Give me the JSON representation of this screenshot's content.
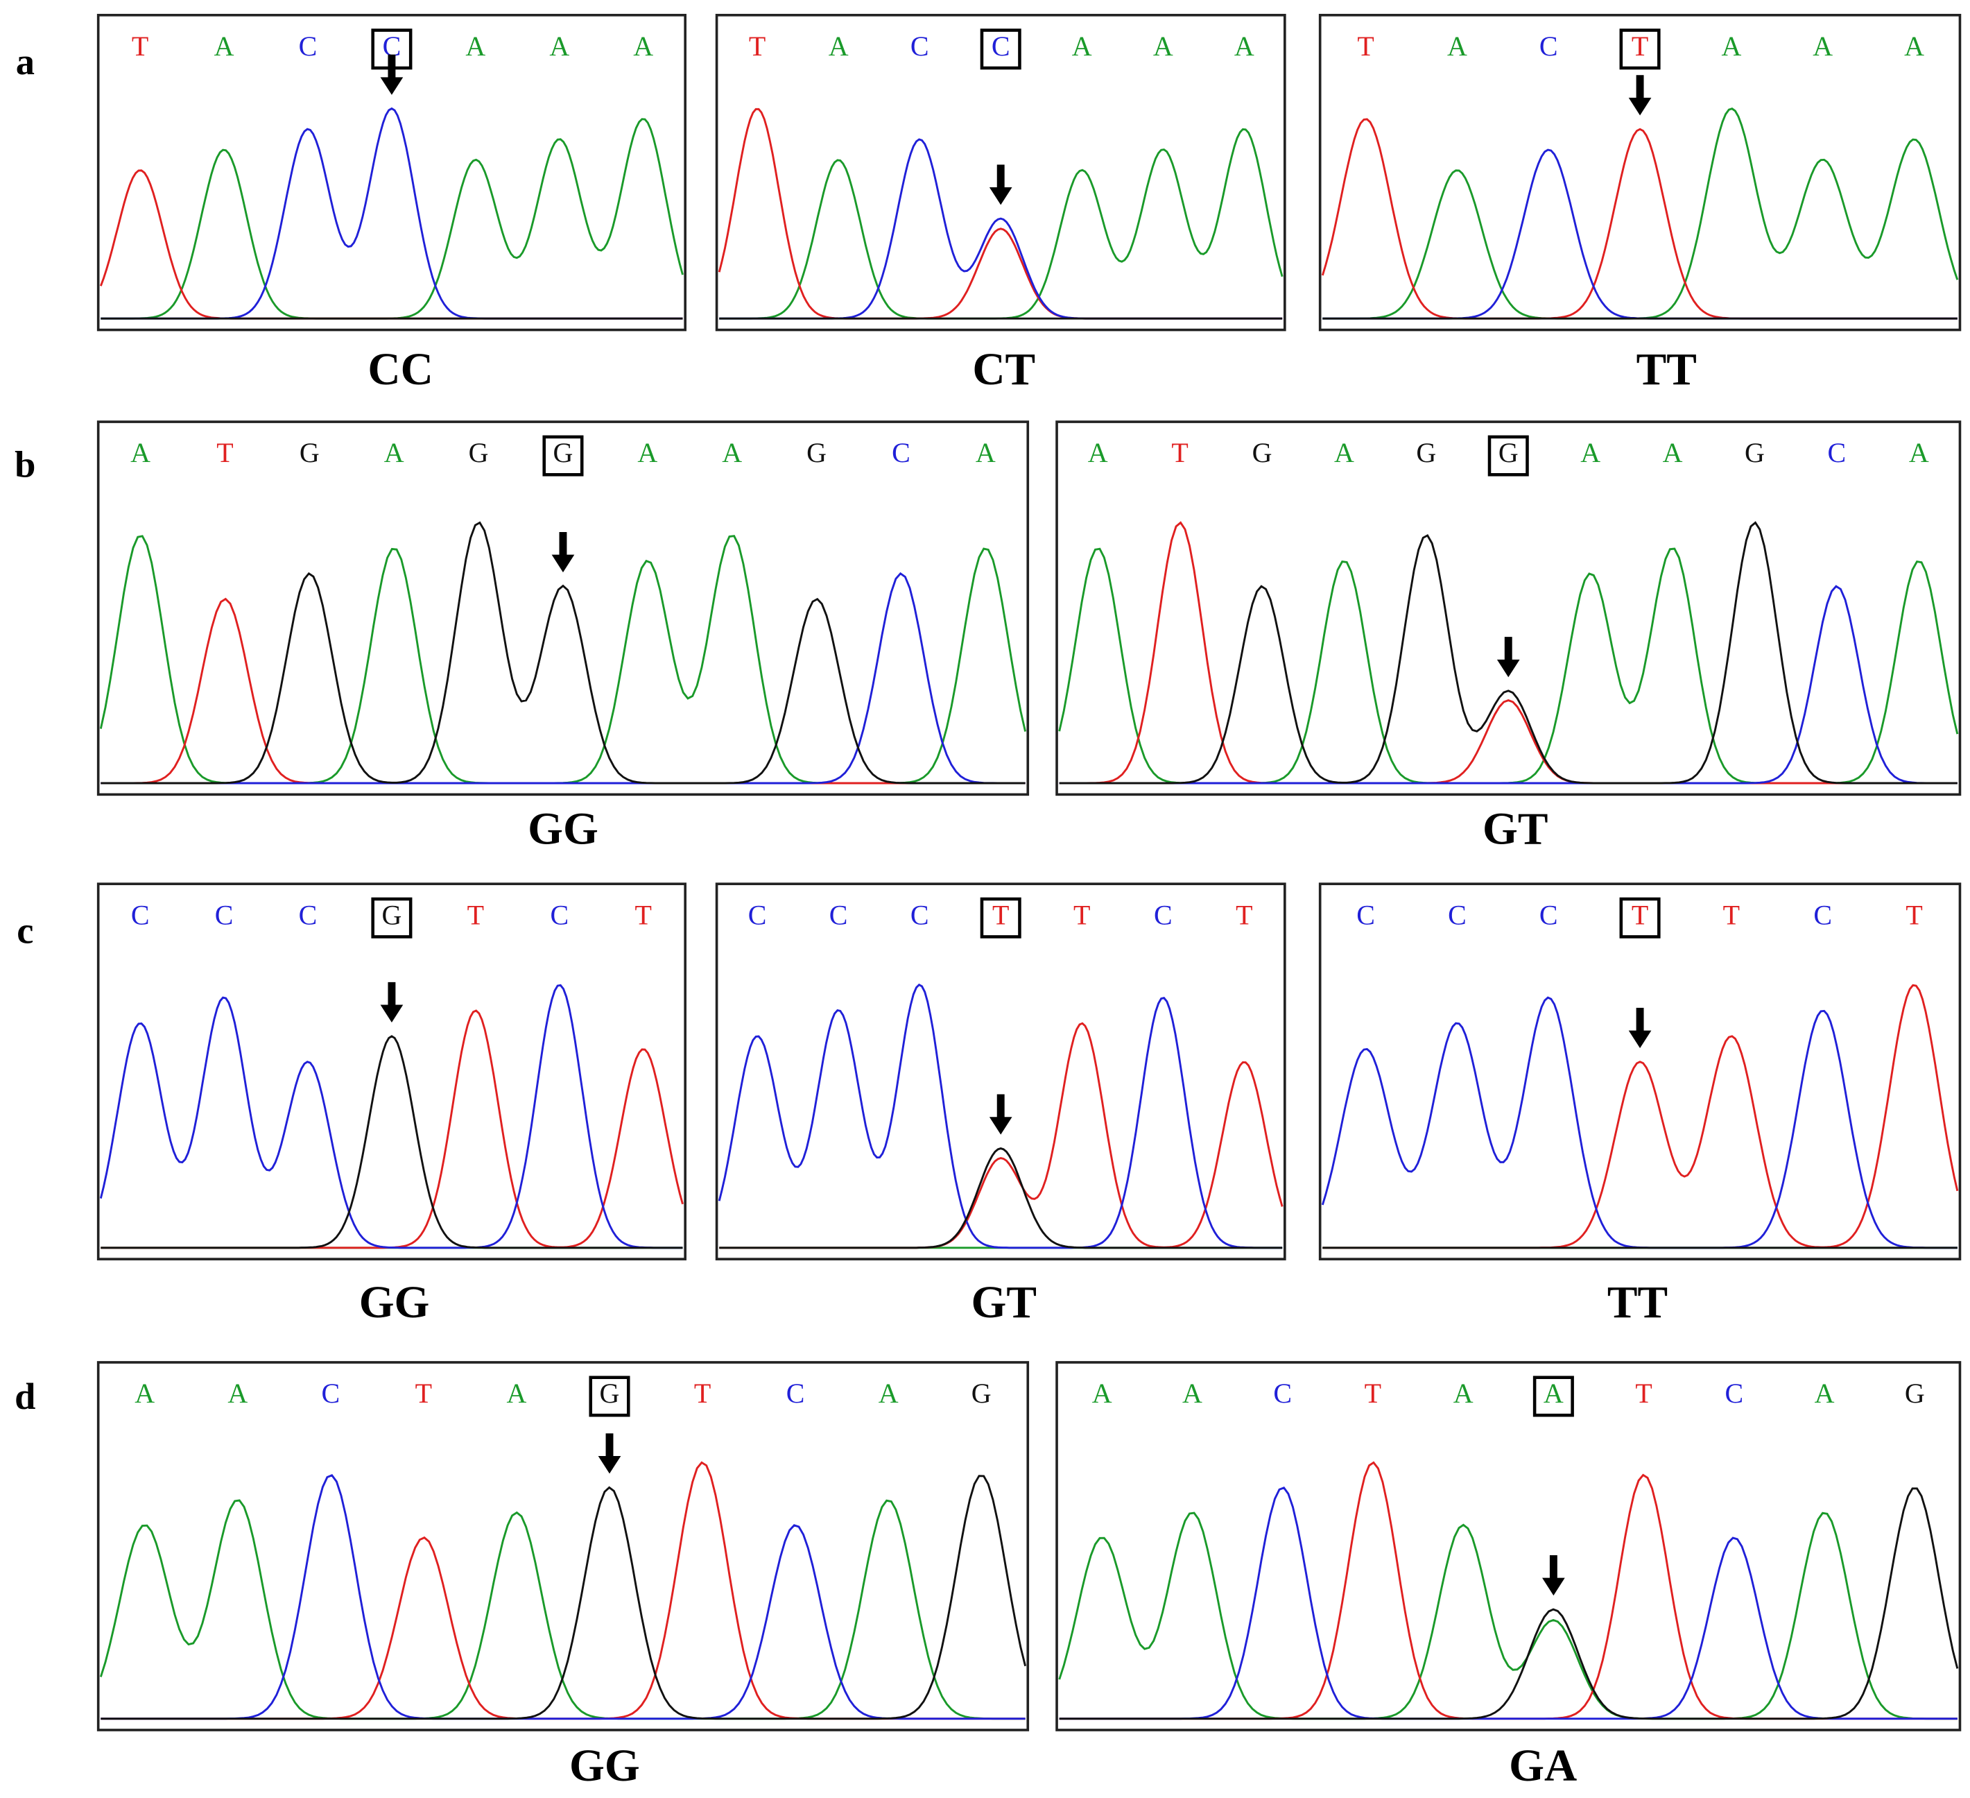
{
  "rows": [
    {
      "label": "a",
      "panels": [
        {
          "bases": [
            "T",
            "A",
            "C",
            "C",
            "A",
            "A",
            "A"
          ],
          "genotype": "CC"
        },
        {
          "bases": [
            "T",
            "A",
            "C",
            "C",
            "A",
            "A",
            "A"
          ],
          "genotype": "CT"
        },
        {
          "bases": [
            "T",
            "A",
            "C",
            "T",
            "A",
            "A",
            "A"
          ],
          "genotype": "TT"
        }
      ]
    },
    {
      "label": "b",
      "panels": [
        {
          "bases": [
            "A",
            "T",
            "G",
            "A",
            "G",
            "G",
            "A",
            "A",
            "G",
            "C",
            "A"
          ],
          "genotype": "GG"
        },
        {
          "bases": [
            "A",
            "T",
            "G",
            "A",
            "G",
            "G",
            "A",
            "A",
            "G",
            "C",
            "A"
          ],
          "genotype": "GT"
        }
      ]
    },
    {
      "label": "c",
      "panels": [
        {
          "bases": [
            "C",
            "C",
            "C",
            "G",
            "T",
            "C",
            "T"
          ],
          "genotype": "GG"
        },
        {
          "bases": [
            "C",
            "C",
            "C",
            "T",
            "T",
            "C",
            "T"
          ],
          "genotype": "GT"
        },
        {
          "bases": [
            "C",
            "C",
            "C",
            "T",
            "T",
            "C",
            "T"
          ],
          "genotype": "TT"
        }
      ]
    },
    {
      "label": "d",
      "panels": [
        {
          "bases": [
            "A",
            "A",
            "C",
            "T",
            "A",
            "G",
            "T",
            "C",
            "A",
            "G"
          ],
          "genotype": "GG"
        },
        {
          "bases": [
            "A",
            "A",
            "C",
            "T",
            "A",
            "A",
            "T",
            "C",
            "A",
            "G"
          ],
          "genotype": "GA"
        }
      ]
    }
  ]
}
